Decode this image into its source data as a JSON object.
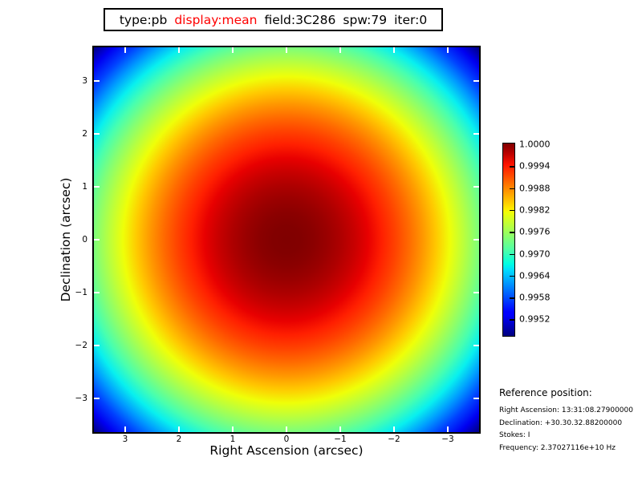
{
  "title_box": {
    "tokens": [
      {
        "text": "type:pb",
        "color": "#000000"
      },
      {
        "text": "display:mean",
        "color": "#ff0000"
      },
      {
        "text": "field:3C286",
        "color": "#000000"
      },
      {
        "text": "spw:79",
        "color": "#000000"
      },
      {
        "text": "iter:0",
        "color": "#000000"
      }
    ]
  },
  "plot": {
    "xlabel": "Right Ascension (arcsec)",
    "ylabel": "Declination (arcsec)",
    "x_tick_labels": [
      "3",
      "2",
      "1",
      "0",
      "−1",
      "−2",
      "−3"
    ],
    "y_tick_labels": [
      "3",
      "2",
      "1",
      "0",
      "−1",
      "−2",
      "−3"
    ]
  },
  "colorbar": {
    "colormap": "jet",
    "tick_labels": [
      "1.0000",
      "0.9994",
      "0.9988",
      "0.9982",
      "0.9976",
      "0.9970",
      "0.9964",
      "0.9958",
      "0.9952"
    ]
  },
  "reference_position": {
    "heading": "Reference position:",
    "lines": [
      "Right Ascension: 13:31:08.27900000",
      "Declination: +30.30.32.88200000",
      "Stokes: I",
      "Frequency: 2.37027116e+10 Hz"
    ]
  },
  "chart_data": {
    "type": "heatmap",
    "title": "type:pb  display:mean  field:3C286  spw:79  iter:0",
    "xlabel": "Right Ascension (arcsec)",
    "ylabel": "Declination (arcsec)",
    "x_ticks": [
      3,
      2,
      1,
      0,
      -1,
      -2,
      -3
    ],
    "y_ticks": [
      3,
      2,
      1,
      0,
      -1,
      -2,
      -3
    ],
    "x_range": [
      3.6,
      -3.6
    ],
    "y_range": [
      -3.6,
      3.6
    ],
    "grid": false,
    "colormap": "jet",
    "value_range": [
      0.9947,
      1.0
    ],
    "colorbar_ticks": [
      1.0,
      0.9994,
      0.9988,
      0.9982,
      0.9976,
      0.997,
      0.9964,
      0.9958,
      0.9952
    ],
    "colorbar_position": "right",
    "description": "Radially symmetric primary-beam (pb) mean response for field 3C286, spw 79: peak value 1.0 at image center (RA=0, Dec=0), decreasing quadratically to ~0.9947 at the field corners (jet colormap: dark red center through red, orange, yellow, green, cyan, blue to dark blue corners)",
    "radial_profile": [
      {
        "radius_arcsec": 0.0,
        "value": 1.0
      },
      {
        "radius_arcsec": 1.0,
        "value": 0.9998
      },
      {
        "radius_arcsec": 2.0,
        "value": 0.9992
      },
      {
        "radius_arcsec": 3.0,
        "value": 0.9981
      },
      {
        "radius_arcsec": 4.0,
        "value": 0.9967
      },
      {
        "radius_arcsec": 5.0,
        "value": 0.9948
      }
    ]
  }
}
